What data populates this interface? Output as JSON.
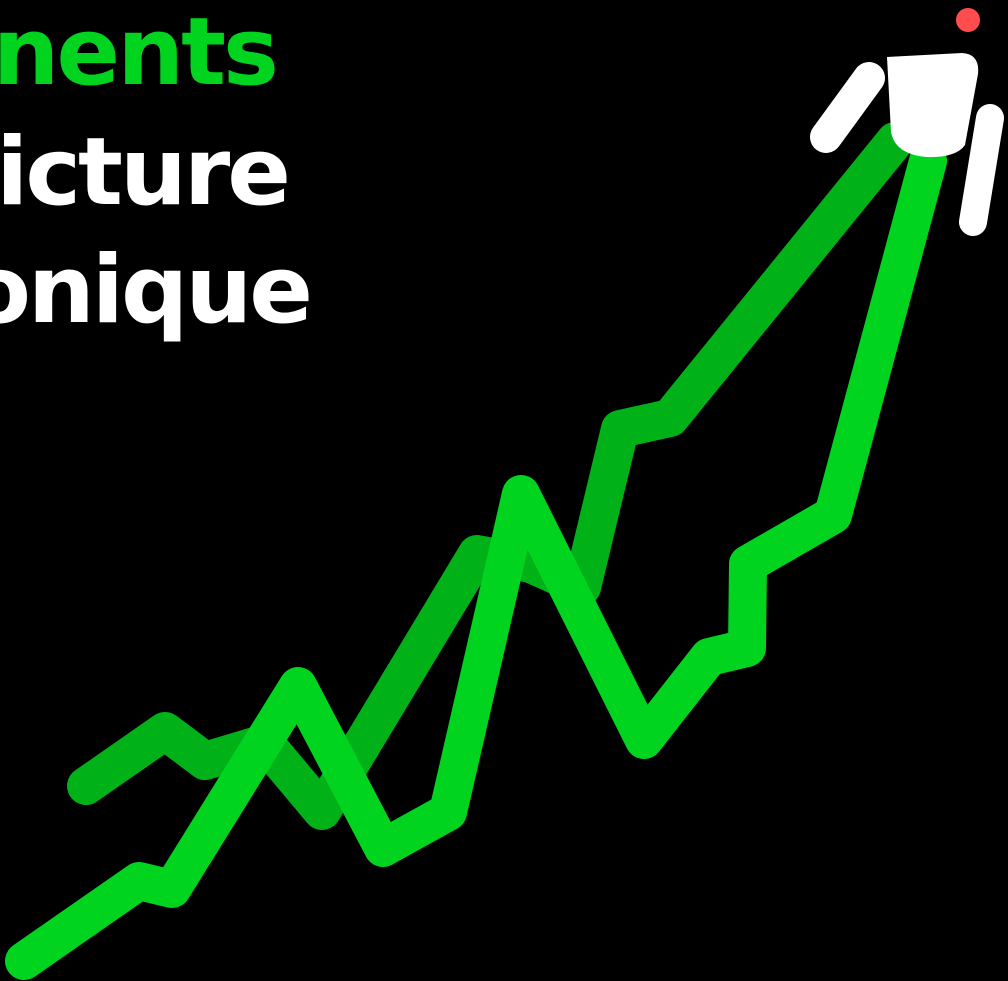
{
  "headline": {
    "line1": "nents",
    "line2": "icture",
    "line3": "onique"
  },
  "colors": {
    "background": "#000000",
    "accent_green": "#00D41E",
    "dark_green": "#00B218",
    "text_white": "#FFFFFF",
    "figure_white": "#FFFFFF",
    "dot_red": "#FF4D4D"
  },
  "illustration": {
    "subject": "person-standing-on-rising-line-chart",
    "icons": [
      "person-figure",
      "red-dot"
    ]
  }
}
